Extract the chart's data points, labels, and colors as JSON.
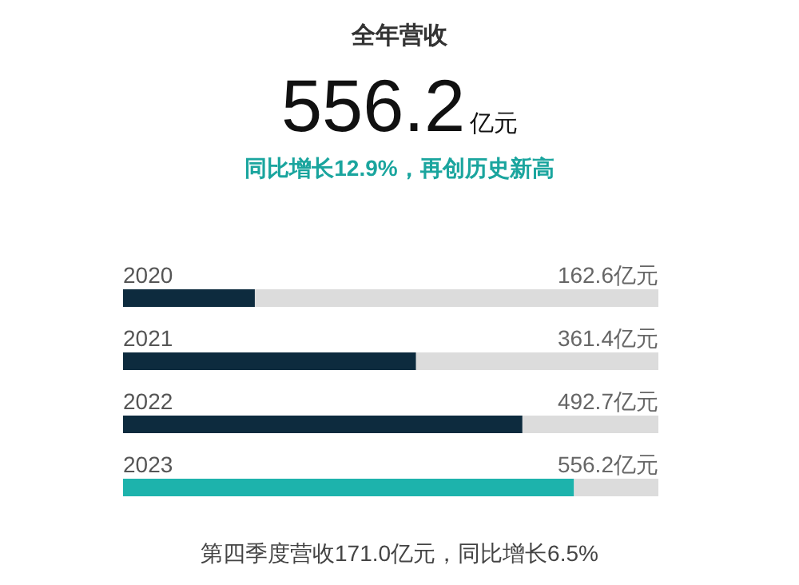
{
  "chart_data": {
    "type": "bar",
    "orientation": "horizontal",
    "title": "全年营收",
    "annotations": [
      "556.2亿元",
      "同比增长12.9%，再创历史新高",
      "第四季度营收171.0亿元，同比增长6.5%"
    ],
    "categories": [
      "2020",
      "2021",
      "2022",
      "2023"
    ],
    "values": [
      162.6,
      361.4,
      492.7,
      556.2
    ],
    "colors": [
      "#0d2b3e",
      "#0d2b3e",
      "#0d2b3e",
      "#1db3ac"
    ],
    "value_labels": [
      "162.6亿元",
      "361.4亿元",
      "492.7亿元",
      "556.2亿元"
    ]
  }
}
